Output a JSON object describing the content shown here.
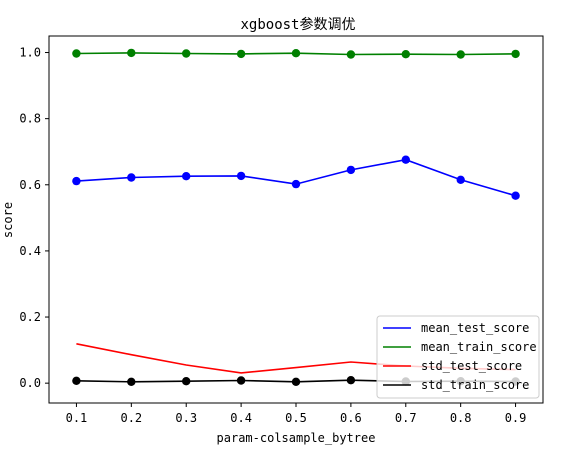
{
  "chart_data": {
    "type": "line",
    "title": "xgboost参数调优",
    "xlabel": "param-colsample_bytree",
    "ylabel": "score",
    "x": [
      0.1,
      0.2,
      0.3,
      0.4,
      0.5,
      0.6,
      0.7,
      0.8,
      0.9
    ],
    "x_tick_labels": [
      "0.1",
      "0.2",
      "0.3",
      "0.4",
      "0.5",
      "0.6",
      "0.7",
      "0.8",
      "0.9"
    ],
    "xlim": [
      0.05,
      0.95
    ],
    "ylim": [
      -0.06,
      1.05
    ],
    "y_ticks": [
      0.0,
      0.2,
      0.4,
      0.6,
      0.8,
      1.0
    ],
    "y_tick_labels": [
      "0.0",
      "0.2",
      "0.4",
      "0.6",
      "0.8",
      "1.0"
    ],
    "grid": false,
    "legend_position": "bottom-right",
    "series": [
      {
        "name": "mean_test_score",
        "color": "#0000ff",
        "marker": true,
        "values": [
          0.611,
          0.622,
          0.626,
          0.627,
          0.602,
          0.645,
          0.676,
          0.615,
          0.567
        ]
      },
      {
        "name": "mean_train_score",
        "color": "#008000",
        "marker": true,
        "values": [
          0.997,
          0.999,
          0.997,
          0.996,
          0.998,
          0.994,
          0.995,
          0.994,
          0.996
        ]
      },
      {
        "name": "std_test_score",
        "color": "#ff0000",
        "marker": false,
        "values": [
          0.119,
          0.086,
          0.055,
          0.031,
          0.047,
          0.064,
          0.052,
          0.045,
          0.041
        ]
      },
      {
        "name": "std_train_score",
        "color": "#000000",
        "marker": true,
        "values": [
          0.007,
          0.004,
          0.006,
          0.008,
          0.004,
          0.009,
          0.005,
          0.006,
          0.005
        ]
      }
    ]
  }
}
